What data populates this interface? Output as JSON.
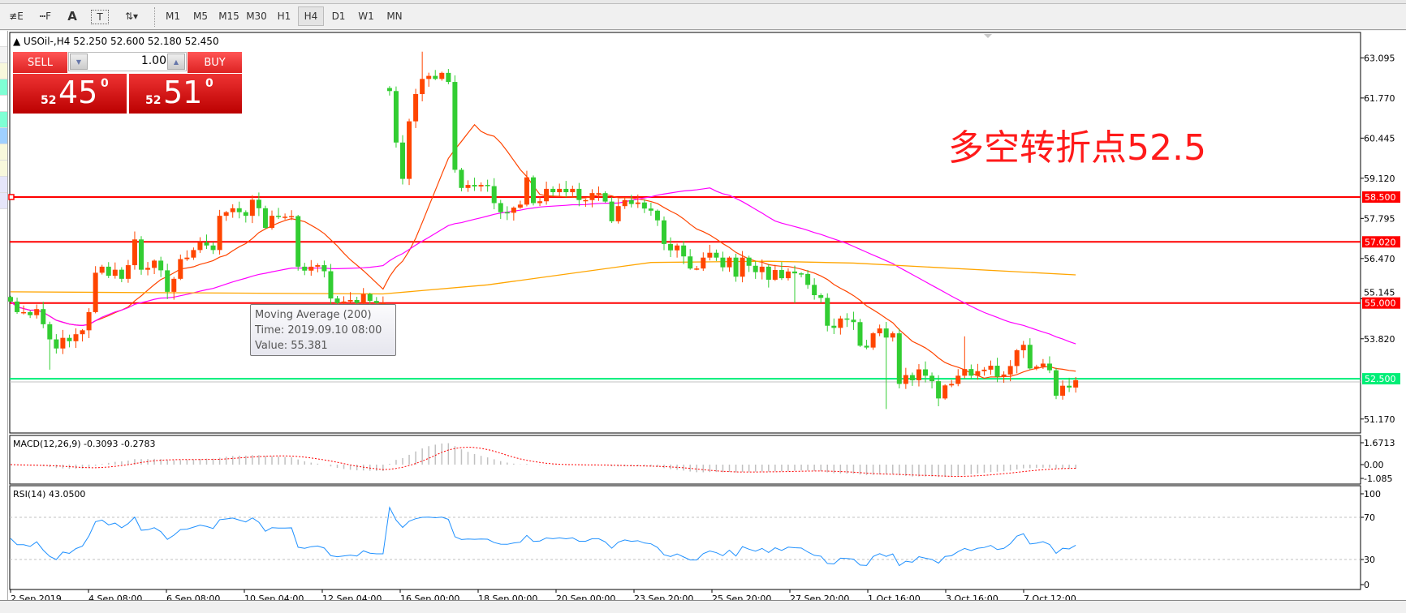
{
  "toolbar": {
    "tools": [
      {
        "name": "elliott-wave-tool",
        "glyph": "≢E"
      },
      {
        "name": "fibonacci-tool",
        "glyph": "┅F"
      },
      {
        "name": "text-tool",
        "glyph": "A"
      },
      {
        "name": "text-label-tool",
        "glyph": "T"
      },
      {
        "name": "arrows-tool",
        "glyph": "⇅▾"
      }
    ],
    "timeframes": [
      "M1",
      "M5",
      "M15",
      "M30",
      "H1",
      "H4",
      "D1",
      "W1",
      "MN"
    ],
    "selected_timeframe": "H4"
  },
  "chart": {
    "symbol_line": "USOil-,H4  52.250 52.600 52.180 52.450",
    "trade_panel": {
      "sell_label": "SELL",
      "buy_label": "BUY",
      "lot": "1.00",
      "sell_price": {
        "prefix": "52",
        "big": "45",
        "sup": "0"
      },
      "buy_price": {
        "prefix": "52",
        "big": "51",
        "sup": "0"
      }
    },
    "annotation": "多空转折点52.5",
    "tooltip": {
      "line1": "Moving Average (200)",
      "line2": "Time: 2019.09.10 08:00",
      "line3": "Value: 55.381"
    },
    "price_ticks": [
      "63.095",
      "61.770",
      "60.445",
      "59.120",
      "57.795",
      "56.470",
      "55.145",
      "53.820",
      "51.170"
    ],
    "levels": [
      {
        "price": "58.500",
        "color": "#ff0000"
      },
      {
        "price": "57.020",
        "color": "#ff0000"
      },
      {
        "price": "55.000",
        "color": "#ff0000"
      },
      {
        "price": "52.500",
        "color": "#00ee77"
      }
    ],
    "bid_line": 52.45,
    "colors": {
      "bull": "#ff4500",
      "bear": "#32cd32",
      "ma_fast": "#ff4500",
      "ma_mid": "#ff00ff",
      "ma_slow": "#ffa500",
      "macd_hist": "#c0c0c0",
      "macd_signal": "#ff0000",
      "rsi": "#1e90ff"
    },
    "time_labels": [
      "2 Sep 2019",
      "4 Sep 08:00",
      "6 Sep 08:00",
      "10 Sep 04:00",
      "12 Sep 04:00",
      "16 Sep 00:00",
      "18 Sep 00:00",
      "20 Sep 00:00",
      "23 Sep 20:00",
      "25 Sep 20:00",
      "27 Sep 20:00",
      "1 Oct 16:00",
      "3 Oct 16:00",
      "7 Oct 12:00"
    ],
    "closes": [
      55.05,
      54.7,
      54.7,
      54.6,
      54.8,
      54.3,
      53.8,
      53.5,
      53.85,
      53.74,
      53.97,
      54.1,
      54.7,
      56.0,
      56.2,
      55.9,
      56.1,
      55.8,
      56.25,
      57.1,
      56.1,
      56.16,
      56.4,
      56.08,
      55.37,
      55.8,
      56.45,
      56.5,
      56.75,
      57.0,
      56.9,
      56.75,
      57.88,
      58.0,
      58.13,
      58.0,
      57.88,
      58.41,
      58.13,
      57.48,
      57.88,
      57.85,
      57.85,
      57.87,
      56.2,
      56.07,
      56.2,
      56.25,
      56.05,
      55.15,
      55.0,
      55.05,
      55.1,
      55.0,
      55.3,
      55.07,
      55.0,
      55.0,
      62.0,
      60.3,
      59.1,
      61.0,
      61.9,
      62.4,
      62.5,
      62.4,
      62.6,
      62.3,
      59.4,
      58.8,
      58.9,
      58.85,
      58.9,
      58.86,
      58.3,
      58.0,
      57.98,
      58.15,
      58.25,
      59.15,
      58.3,
      58.36,
      58.77,
      58.66,
      58.77,
      58.66,
      58.77,
      58.4,
      58.4,
      58.63,
      58.63,
      58.35,
      57.7,
      58.2,
      58.4,
      58.27,
      58.32,
      58.12,
      58.05,
      57.73,
      56.95,
      56.74,
      56.9,
      56.54,
      56.14,
      56.14,
      56.5,
      56.66,
      56.5,
      56.18,
      56.5,
      55.87,
      56.5,
      56.23,
      56.02,
      56.2,
      55.77,
      56.09,
      55.82,
      56.04,
      55.98,
      55.96,
      55.6,
      55.26,
      55.17,
      54.25,
      54.18,
      54.49,
      54.45,
      54.37,
      53.59,
      53.53,
      54.0,
      54.16,
      53.86,
      54.0,
      52.33,
      52.62,
      52.45,
      52.81,
      52.6,
      52.42,
      51.85,
      52.28,
      52.33,
      52.6,
      52.82,
      52.6,
      52.75,
      52.8,
      52.93,
      52.57,
      52.64,
      52.92,
      53.44,
      53.62,
      52.84,
      52.9,
      53.0,
      52.78,
      51.94,
      52.27,
      52.21,
      52.45
    ],
    "first_open": 55.2,
    "gap_opens": {
      "58": 62.1
    },
    "ma200_keypoints": [
      [
        0,
        55.37
      ],
      [
        57,
        55.3
      ],
      [
        73,
        55.6
      ],
      [
        98,
        56.34
      ],
      [
        116,
        56.38
      ],
      [
        129,
        56.32
      ],
      [
        163,
        55.93
      ]
    ],
    "macd": {
      "label": "MACD(12,26,9) -0.3093 -0.2783",
      "ticks": [
        "1.6713",
        "0.00",
        "-1.085"
      ]
    },
    "rsi": {
      "label": "RSI(14) 43.0500",
      "ticks": [
        "100",
        "70",
        "30",
        "0"
      ]
    }
  }
}
